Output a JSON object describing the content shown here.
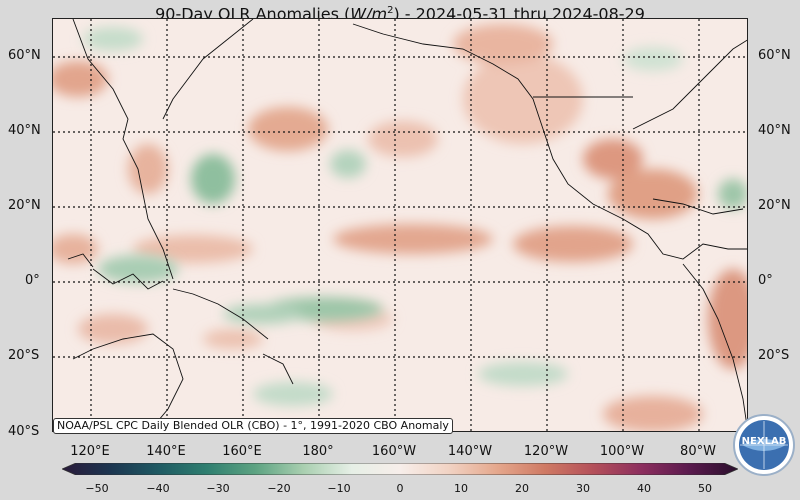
{
  "title": {
    "prefix": "90-Day OLR Anomalies (",
    "unit_base": "W/m",
    "unit_exp": "2",
    "suffix": ") - 2024-05-31 thru 2024-08-29"
  },
  "caption": "NOAA/PSL CPC Daily Blended OLR (CBO) - 1°, 1991-2020 CBO Anomaly",
  "latitude_labels": [
    "60°N",
    "40°N",
    "20°N",
    "0°",
    "20°S",
    "40°S"
  ],
  "longitude_labels": [
    "120°E",
    "140°E",
    "160°E",
    "180°",
    "160°W",
    "140°W",
    "120°W",
    "100°W",
    "80°W"
  ],
  "colorbar": {
    "ticks": [
      "−50",
      "−40",
      "−30",
      "−20",
      "−10",
      "0",
      "10",
      "20",
      "30",
      "40",
      "50"
    ],
    "colors": [
      "#2a1a3a",
      "#1c3550",
      "#1f5a63",
      "#2f7f70",
      "#5da382",
      "#a9cfb0",
      "#e6efe6",
      "#f7eeea",
      "#f1d3c4",
      "#e5a88d",
      "#cf7a64",
      "#b4505a",
      "#8c2e5e",
      "#5a1a4e",
      "#2a0f2c"
    ]
  },
  "logo": {
    "text": "NEXLAB"
  },
  "map_colors": {
    "ocean_base": "#f7ebe6",
    "positive": "#d98a70",
    "negative": "#6ea887"
  }
}
